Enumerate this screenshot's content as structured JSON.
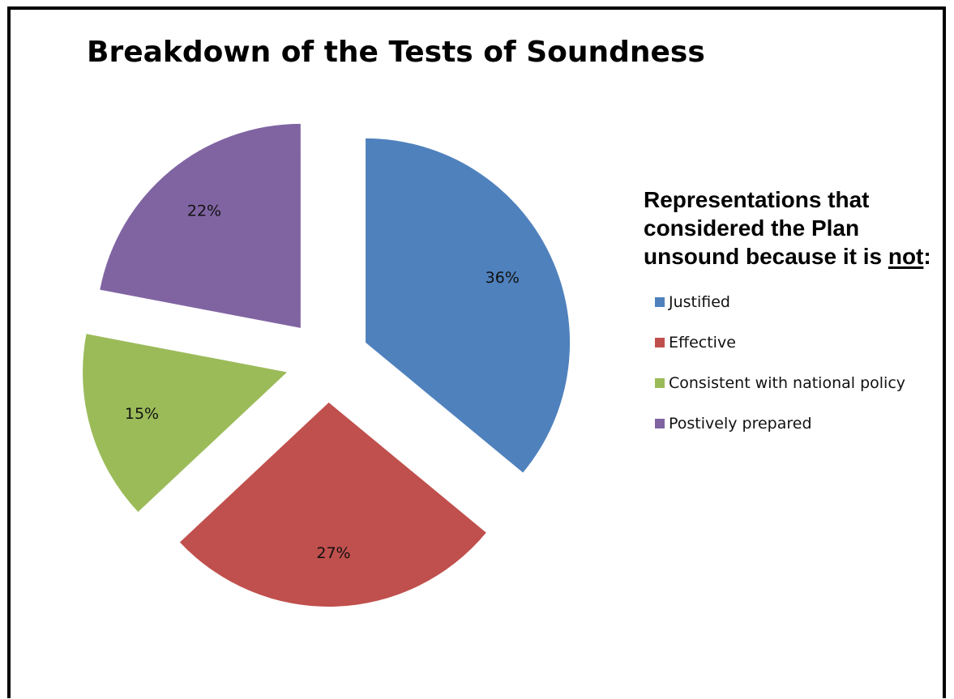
{
  "chart_data": {
    "type": "pie",
    "title": "Breakdown of the Tests of Soundness",
    "legend_title": {
      "before": "Representations that considered the Plan unsound because it is ",
      "emphasis": "not",
      "after": ":"
    },
    "legend_position": "right",
    "categories": [
      "Justified",
      "Effective",
      "Consistent with national policy",
      "Postively prepared"
    ],
    "values": [
      36,
      27,
      15,
      22
    ],
    "value_labels": [
      "36%",
      "27%",
      "15%",
      "22%"
    ],
    "colors": [
      "#4F81BD",
      "#C0504D",
      "#9BBB59",
      "#8064A2"
    ],
    "exploded": true
  }
}
